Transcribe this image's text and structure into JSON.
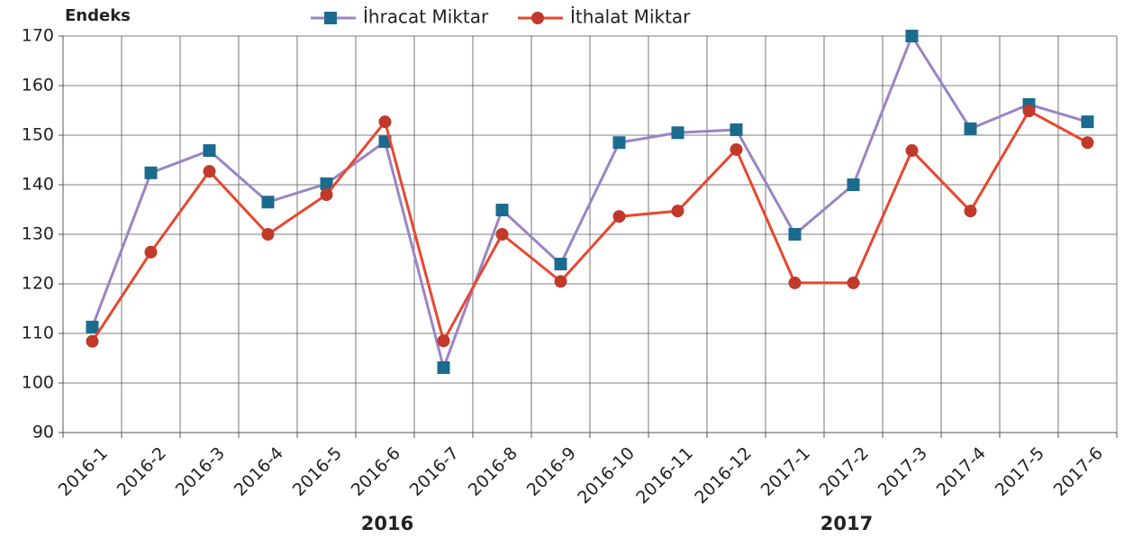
{
  "chart_data": {
    "type": "line",
    "y_label": "Endeks",
    "categories": [
      "2016-1",
      "2016-2",
      "2016-3",
      "2016-4",
      "2016-5",
      "2016-6",
      "2016-7",
      "2016-8",
      "2016-9",
      "2016-10",
      "2016-11",
      "2016-12",
      "2017-1",
      "2017-2",
      "2017-3",
      "2017-4",
      "2017-5",
      "2017-6"
    ],
    "group_labels": [
      "2016",
      "2017"
    ],
    "series": [
      {
        "name": "İhracat Miktar",
        "color": "#9b84c4",
        "marker_color": "#1b6b8e",
        "marker": "square",
        "values": [
          111.3,
          142.4,
          146.9,
          136.5,
          140.2,
          148.7,
          103.1,
          134.9,
          124,
          148.5,
          150.5,
          151.1,
          130,
          140,
          170,
          151.3,
          156.2,
          152.7
        ]
      },
      {
        "name": "İthalat Miktar",
        "color": "#e8472f",
        "marker_color": "#c0392b",
        "marker": "circle",
        "values": [
          108.4,
          126.4,
          142.7,
          130,
          138,
          152.7,
          108.5,
          130,
          120.5,
          133.6,
          134.7,
          147.1,
          120.2,
          120.2,
          146.9,
          134.7,
          154.9,
          148.5
        ]
      }
    ],
    "ylim": [
      90,
      170
    ],
    "yticks": [
      90,
      100,
      110,
      120,
      130,
      140,
      150,
      160,
      170
    ],
    "grid": true
  }
}
